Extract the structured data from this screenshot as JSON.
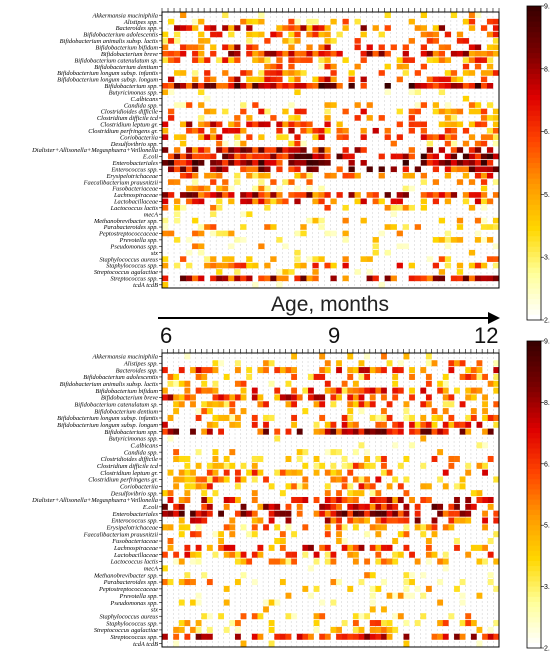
{
  "chart_data": {
    "type": "heatmap",
    "row_labels": [
      "Akkermansia muciniphila",
      "Alistipes spp.",
      "Bacteroides spp.",
      "Bifidobacterium adolescentis",
      "Bifidobacterium animalis subsp. lactis",
      "Bifidobacterium bifidum",
      "Bifidobacterium breve",
      "Bifidobacterium catenulatum sp.",
      "Bifidobacterium dentium",
      "Bifidobacterium longum subsp. infantis",
      "Bifidobacterium longum subsp. longum",
      "Bifidobacterium spp.",
      "Butyricimonas spp.",
      "C.albicans",
      "Candida spp.",
      "Clostridioides difficile",
      "Clostridium difficile tcd",
      "Clostridium leptum gr.",
      "Clostridium perfringens gr.",
      "Coriobacteriia",
      "Desulfovibrio spp.",
      "Dialister+Allisonella+Megasphaera+Veillonella",
      "E.coli",
      "Enterobacteriales",
      "Enterococcus spp.",
      "Erysipelotrichaceae",
      "Faecalibacterium prausnitzii",
      "Fusobacteriaceae",
      "Lachnospiraceae",
      "Lactobacillaceae",
      "Lactococcus lactis",
      "mecA",
      "Methanobrevibacter spp.",
      "Parabacteroides spp.",
      "Peptostreptococcaceae",
      "Prevotella spp.",
      "Pseudomonas spp.",
      "stx",
      "Staphylococcus aureus",
      "Staphylococcus spp.",
      "Streptococcus agalactiae",
      "Streptococcus spp.",
      "tcdA tcdB"
    ],
    "xlabel": "Age, months",
    "x_ticks": [
      "6",
      "9",
      "12"
    ],
    "colorbar": {
      "min": 2.1,
      "max": 9.5,
      "ticks": [
        "9.500",
        "8.020",
        "6.540",
        "5.060",
        "3.580",
        "2.100"
      ]
    },
    "colorscale": [
      "#ffffff",
      "#ffff99",
      "#ffd700",
      "#ff9900",
      "#ff4400",
      "#dd0000",
      "#7a0000",
      "#3a0000"
    ],
    "panels": [
      {
        "name": "top",
        "n_cols": 56
      },
      {
        "name": "bottom",
        "n_cols": 60
      }
    ]
  }
}
